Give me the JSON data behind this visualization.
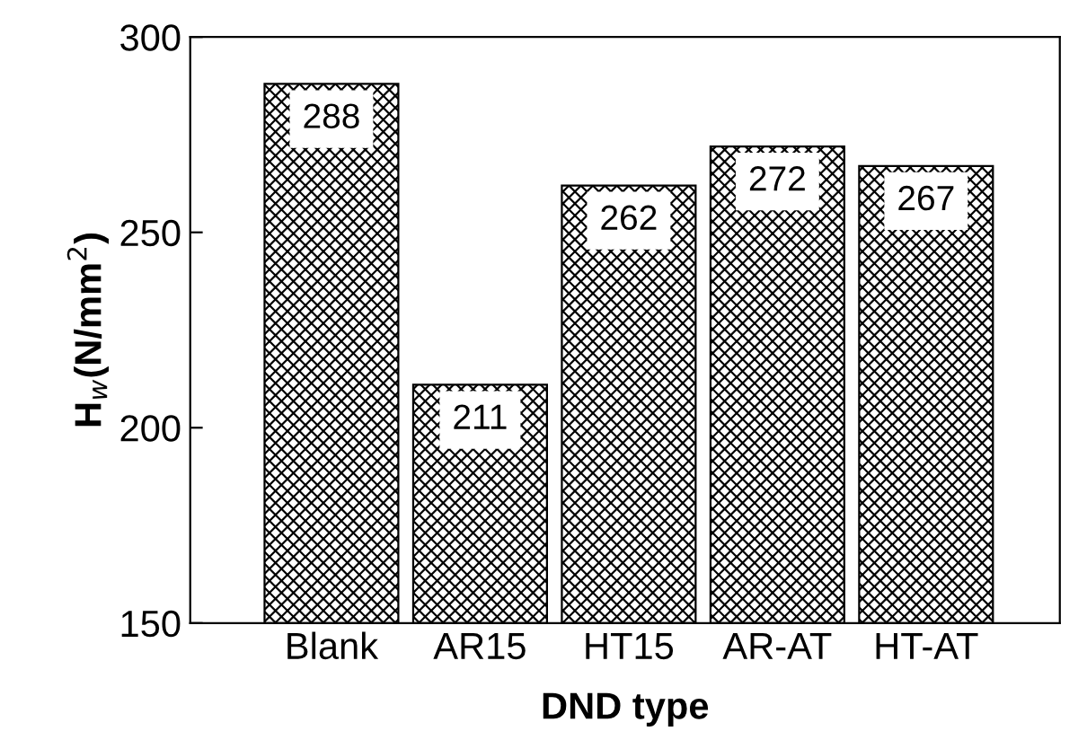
{
  "chart_data": {
    "type": "bar",
    "xlabel": "DND type",
    "ylabel": "H$_{w}$(N/mm$^{2}$)",
    "categories": [
      "Blank",
      "AR15",
      "HT15",
      "AR-AT",
      "HT-AT"
    ],
    "values": [
      288,
      211,
      262,
      272,
      267
    ],
    "color": "#000000",
    "ylim": [
      150,
      300
    ],
    "yticks": [
      150,
      200,
      250,
      300
    ],
    "data_labels": true,
    "grid": false,
    "legend": false
  }
}
